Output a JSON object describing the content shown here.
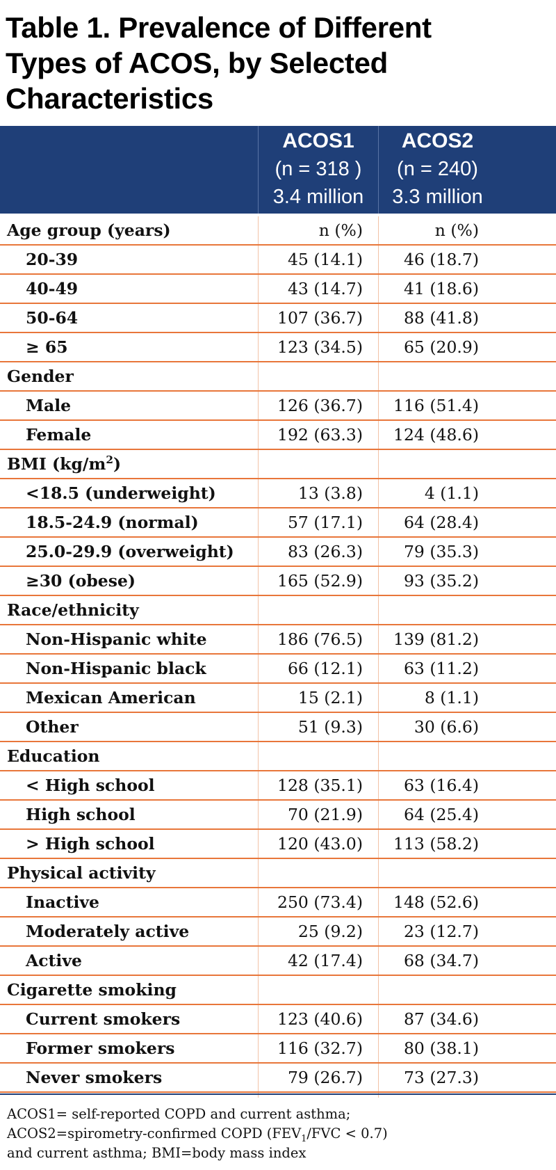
{
  "title": {
    "line1": "Table 1. Prevalence of Different",
    "line2": "Types of ACOS, by Selected",
    "line3": "Characteristics"
  },
  "header": {
    "acos1": {
      "name": "ACOS1",
      "n": "(n = 318 )",
      "pop": "3.4 million"
    },
    "acos2": {
      "name": "ACOS2",
      "n": "(n = 240)",
      "pop": "3.3 million"
    }
  },
  "age": {
    "label": "Age group (years)",
    "v1": "n (%)",
    "v2": "n (%)",
    "rows": [
      {
        "label": "20-39",
        "v1": "45 (14.1)",
        "v2": "46 (18.7)"
      },
      {
        "label": "40-49",
        "v1": "43 (14.7)",
        "v2": "41 (18.6)"
      },
      {
        "label": "50-64",
        "v1": "107 (36.7)",
        "v2": "88 (41.8)"
      },
      {
        "label": "≥ 65",
        "v1": "123 (34.5)",
        "v2": "65 (20.9)"
      }
    ]
  },
  "gender": {
    "label": "Gender",
    "rows": [
      {
        "label": "Male",
        "v1": "126 (36.7)",
        "v2": "116 (51.4)"
      },
      {
        "label": "Female",
        "v1": "192 (63.3)",
        "v2": "124 (48.6)"
      }
    ]
  },
  "bmi": {
    "label_pre": "BMI (kg/m",
    "label_sup": "2",
    "label_post": ")",
    "rows": [
      {
        "label": "<18.5 (underweight)",
        "v1": "13 (3.8)",
        "v2": "4 (1.1)"
      },
      {
        "label": "18.5-24.9 (normal)",
        "v1": "57 (17.1)",
        "v2": "64 (28.4)"
      },
      {
        "label": "25.0-29.9 (overweight)",
        "v1": "83 (26.3)",
        "v2": "79 (35.3)"
      },
      {
        "label": "≥30 (obese)",
        "v1": "165 (52.9)",
        "v2": "93 (35.2)"
      }
    ]
  },
  "race": {
    "label": "Race/ethnicity",
    "rows": [
      {
        "label": "Non-Hispanic white",
        "v1": "186 (76.5)",
        "v2": "139 (81.2)"
      },
      {
        "label": "Non-Hispanic black",
        "v1": "66 (12.1)",
        "v2": "63 (11.2)"
      },
      {
        "label": "Mexican American",
        "v1": "15 (2.1)",
        "v2": "8 (1.1)"
      },
      {
        "label": "Other",
        "v1": "51 (9.3)",
        "v2": "30 (6.6)"
      }
    ]
  },
  "education": {
    "label": "Education",
    "rows": [
      {
        "label": "< High school",
        "v1": "128 (35.1)",
        "v2": "63 (16.4)"
      },
      {
        "label": "High school",
        "v1": "70 (21.9)",
        "v2": "64 (25.4)"
      },
      {
        "label": "> High school",
        "v1": "120 (43.0)",
        "v2": "113 (58.2)"
      }
    ]
  },
  "activity": {
    "label": "Physical activity",
    "rows": [
      {
        "label": "Inactive",
        "v1": "250 (73.4)",
        "v2": "148 (52.6)"
      },
      {
        "label": "Moderately active",
        "v1": "25 (9.2)",
        "v2": "23 (12.7)"
      },
      {
        "label": "Active",
        "v1": "42 (17.4)",
        "v2": "68 (34.7)"
      }
    ]
  },
  "smoking": {
    "label": "Cigarette smoking",
    "rows": [
      {
        "label": "Current smokers",
        "v1": "123 (40.6)",
        "v2": "87 (34.6)"
      },
      {
        "label": "Former smokers",
        "v1": "116 (32.7)",
        "v2": "80 (38.1)"
      },
      {
        "label": "Never smokers",
        "v1": "79 (26.7)",
        "v2": "73 (27.3)"
      }
    ]
  },
  "footnote": {
    "line1": "ACOS1= self-reported COPD and current asthma;",
    "line2_pre": "ACOS2=spirometry-confirmed COPD (FEV",
    "line2_sub": "1",
    "line2_post": "/FVC < 0.7)",
    "line3": "and current asthma; BMI=body mass index"
  }
}
